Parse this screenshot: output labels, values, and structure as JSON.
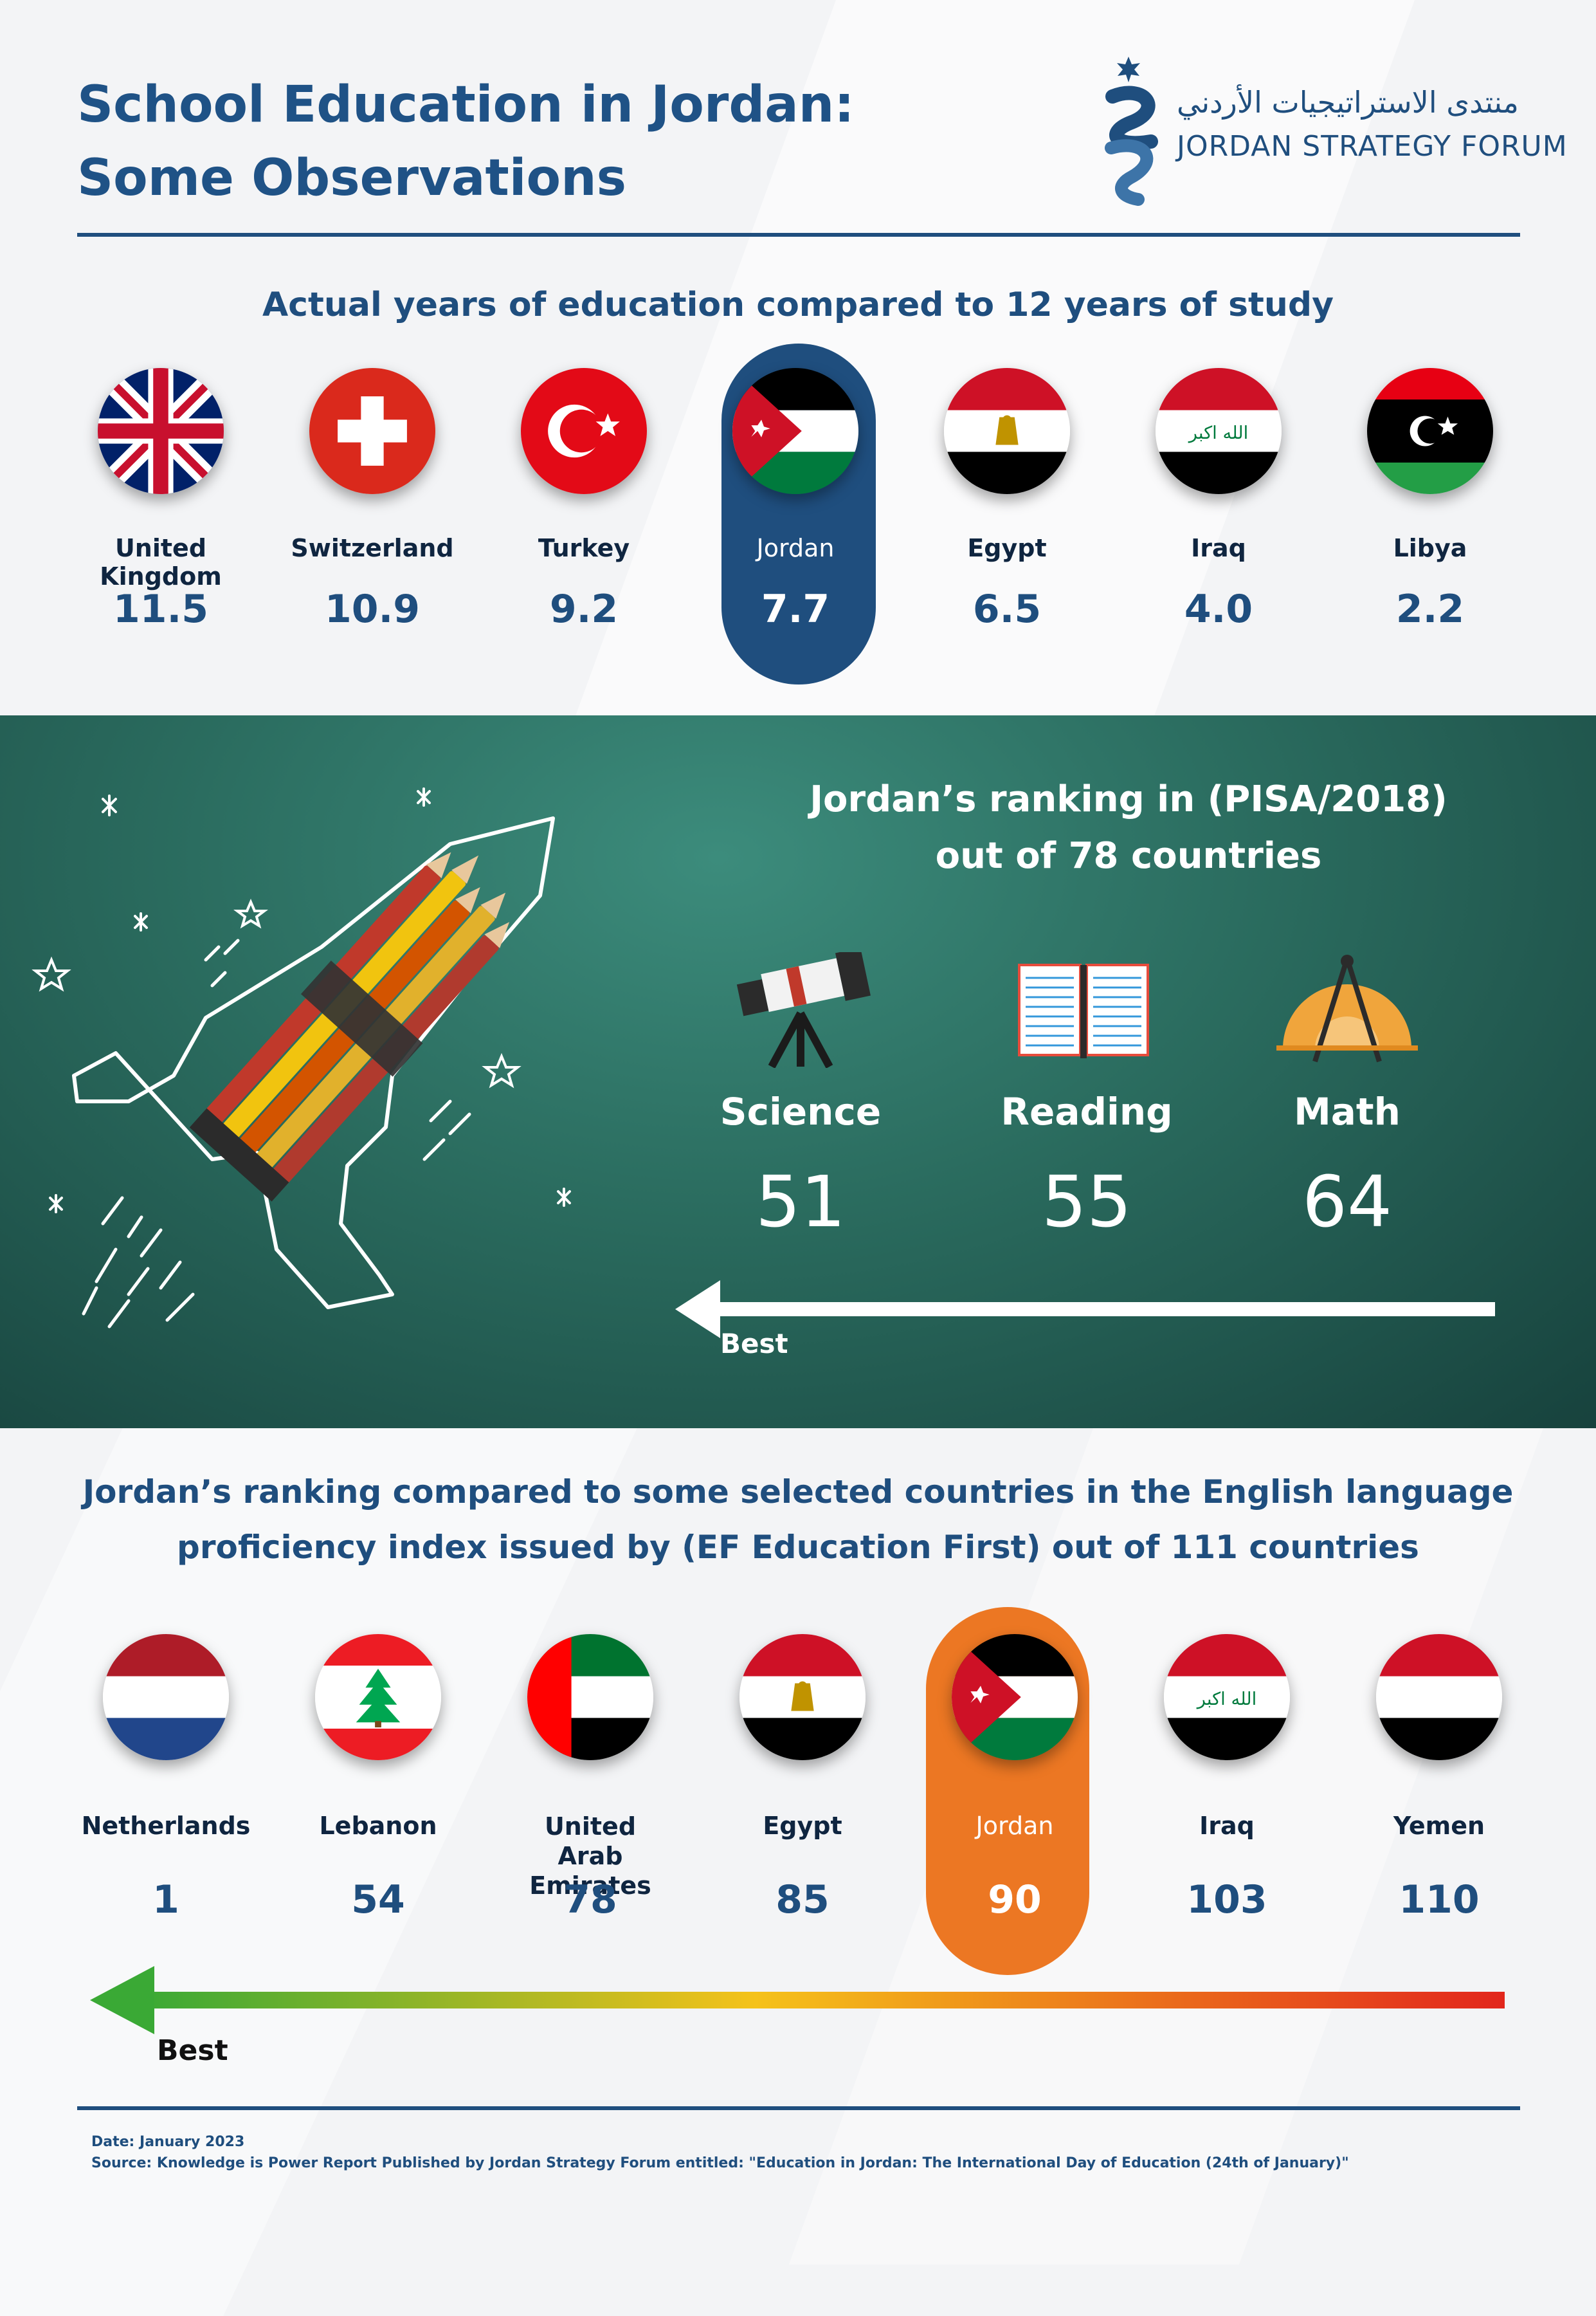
{
  "header": {
    "title_line1": "School Education in Jordan:",
    "title_line2": "Some Observations",
    "logo_arabic": "منتدى الاستراتيجيات الأردني",
    "logo_english": "JORDAN STRATEGY FORUM"
  },
  "section_years": {
    "title": "Actual years of education compared to 12 years of study",
    "highlight_color": "#1f4e7e",
    "countries": [
      {
        "name": "United Kingdom",
        "value": "11.5",
        "flag": "uk-flag-icon"
      },
      {
        "name": "Switzerland",
        "value": "10.9",
        "flag": "switzerland-flag-icon"
      },
      {
        "name": "Turkey",
        "value": "9.2",
        "flag": "turkey-flag-icon"
      },
      {
        "name": "Jordan",
        "value": "7.7",
        "flag": "jordan-flag-icon",
        "highlighted": true
      },
      {
        "name": "Egypt",
        "value": "6.5",
        "flag": "egypt-flag-icon"
      },
      {
        "name": "Iraq",
        "value": "4.0",
        "flag": "iraq-flag-icon"
      },
      {
        "name": "Libya",
        "value": "2.2",
        "flag": "libya-flag-icon"
      }
    ]
  },
  "section_pisa": {
    "title_line1": "Jordan’s ranking in (PISA/2018)",
    "title_line2": "out of 78 countries",
    "subjects": [
      {
        "label": "Science",
        "value": "51",
        "icon": "telescope-icon"
      },
      {
        "label": "Reading",
        "value": "55",
        "icon": "open-book-icon"
      },
      {
        "label": "Math",
        "value": "64",
        "icon": "compass-protractor-icon"
      }
    ],
    "arrow_label": "Best",
    "background_color": "#2a6b5e"
  },
  "section_ef": {
    "title_line1": "Jordan’s ranking compared to some selected countries in the English language",
    "title_line2": "proficiency index issued by (EF Education First) out of 111 countries",
    "highlight_color": "#ec7723",
    "countries": [
      {
        "name": "Netherlands",
        "value": "1",
        "flag": "netherlands-flag-icon"
      },
      {
        "name": "Lebanon",
        "value": "54",
        "flag": "lebanon-flag-icon"
      },
      {
        "name": "United Arab Emirates",
        "value": "78",
        "flag": "uae-flag-icon"
      },
      {
        "name": "Egypt",
        "value": "85",
        "flag": "egypt-flag-icon"
      },
      {
        "name": "Jordan",
        "value": "90",
        "flag": "jordan-flag-icon",
        "highlighted": true
      },
      {
        "name": "Iraq",
        "value": "103",
        "flag": "iraq-flag-icon"
      },
      {
        "name": "Yemen",
        "value": "110",
        "flag": "yemen-flag-icon"
      }
    ],
    "arrow_label": "Best"
  },
  "footer": {
    "date": "Date: January 2023",
    "source": "Source: Knowledge is Power Report Published by Jordan Strategy Forum entitled: \"Education in Jordan: The International Day of Education (24th of January)\""
  }
}
